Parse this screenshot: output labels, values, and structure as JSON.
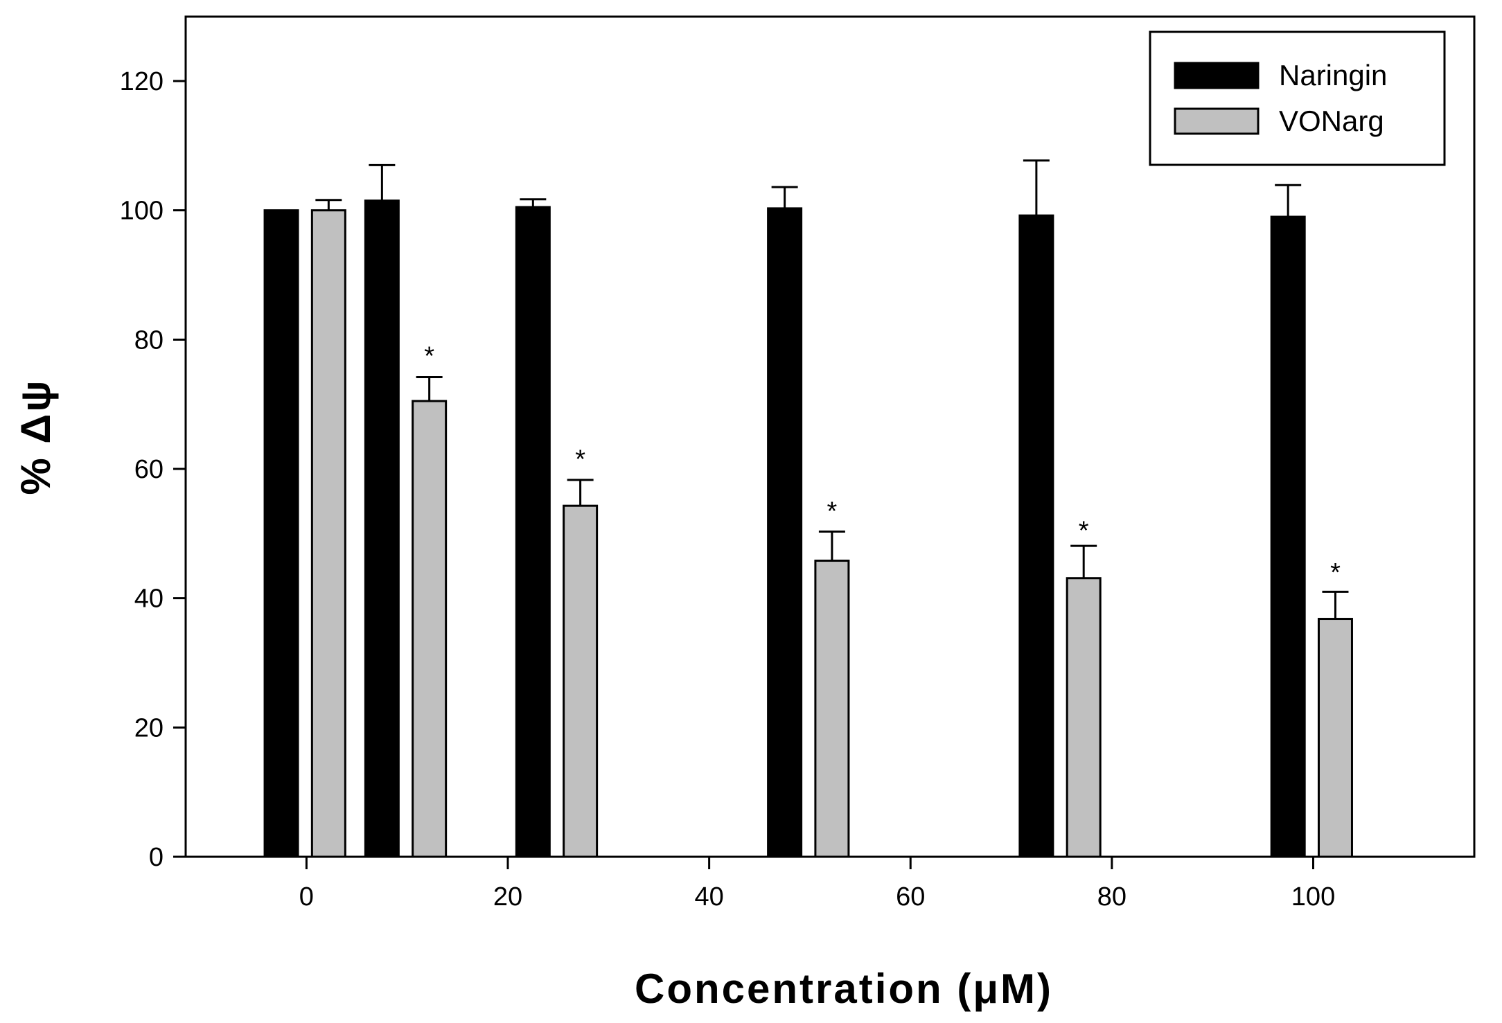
{
  "chart_data": {
    "type": "bar",
    "title": "",
    "xlabel": "Concentration (μM)",
    "ylabel": "% Δψ",
    "xlim": [
      -12,
      116
    ],
    "ylim": [
      0,
      130
    ],
    "xticks": [
      0,
      20,
      40,
      60,
      80,
      100
    ],
    "yticks": [
      0,
      20,
      40,
      60,
      80,
      100,
      120
    ],
    "grid": false,
    "legend_position": "top-right",
    "series": [
      {
        "name": "Naringin",
        "color": "#000000",
        "x": [
          -2.5,
          7.5,
          22.5,
          47.5,
          72.5,
          97.5
        ],
        "values": [
          100,
          101.5,
          100.5,
          100.3,
          99.2,
          99.0
        ],
        "errors": [
          0,
          5.5,
          1.2,
          3.3,
          8.5,
          4.9
        ]
      },
      {
        "name": "VONarg",
        "color": "#c0c0c0",
        "x": [
          2.2,
          12.2,
          27.2,
          52.2,
          77.2,
          102.2
        ],
        "values": [
          100,
          70.5,
          54.3,
          45.8,
          43.1,
          36.8
        ],
        "errors": [
          1.6,
          3.7,
          4.0,
          4.5,
          5.0,
          4.2
        ]
      }
    ],
    "annotations": [
      {
        "text": "*",
        "x": 12.2,
        "y": 78.5
      },
      {
        "text": "*",
        "x": 27.2,
        "y": 62.5
      },
      {
        "text": "*",
        "x": 52.2,
        "y": 54.5
      },
      {
        "text": "*",
        "x": 77.2,
        "y": 51.5
      },
      {
        "text": "*",
        "x": 102.2,
        "y": 45
      }
    ]
  }
}
